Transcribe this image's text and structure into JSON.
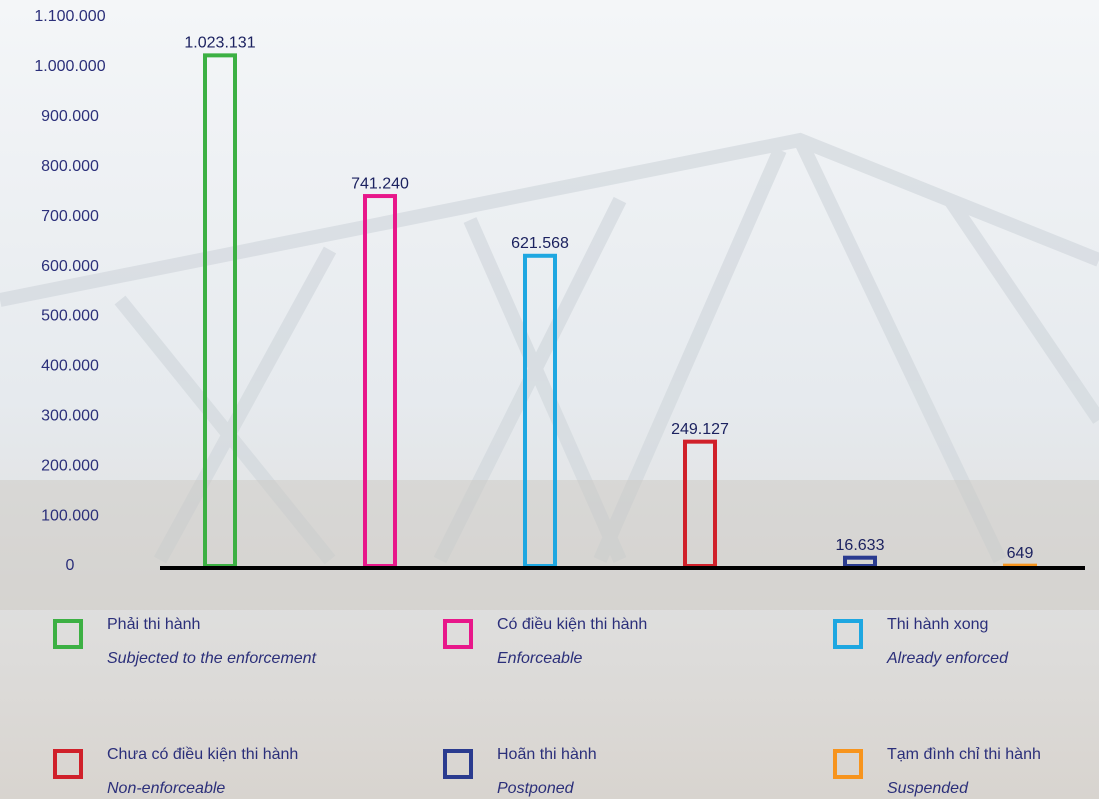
{
  "chart_data": {
    "type": "bar",
    "categories": [
      "Phải thi hành",
      "Có điều kiện thi hành",
      "Thi hành xong",
      "Chưa có điều kiện thi hành",
      "Hoãn thi hành",
      "Tạm đình chỉ thi hành"
    ],
    "category_translations": [
      "Subjected to the enforcement",
      "Enforceable",
      "Already enforced",
      "Non-enforceable",
      "Postponed",
      "Suspended"
    ],
    "values": [
      1023131,
      741240,
      621568,
      249127,
      16633,
      649
    ],
    "value_labels": [
      "1.023.131",
      "741.240",
      "621.568",
      "249.127",
      "16.633",
      "649"
    ],
    "colors": [
      "#3cb043",
      "#e8178a",
      "#1ea7e1",
      "#d0202a",
      "#2a3b8f",
      "#f7941d"
    ],
    "ylim": [
      0,
      1100000
    ],
    "yticks": [
      0,
      {
        "value": 100000,
        "label": "100.000"
      },
      {
        "value": 200000,
        "label": "200.000"
      },
      {
        "value": 300000,
        "label": "300.000"
      },
      {
        "value": 400000,
        "label": "400.000"
      },
      {
        "value": 500000,
        "label": "500.000"
      },
      {
        "value": 600000,
        "label": "600.000"
      },
      {
        "value": 700000,
        "label": "700.000"
      },
      {
        "value": 800000,
        "label": "800.000"
      },
      {
        "value": 900000,
        "label": "900.000"
      },
      {
        "value": 1000000,
        "label": "1.000.000"
      },
      {
        "value": 1100000,
        "label": "1.100.000"
      }
    ],
    "grid": false
  }
}
